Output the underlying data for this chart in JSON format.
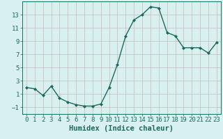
{
  "x": [
    0,
    1,
    2,
    3,
    4,
    5,
    6,
    7,
    8,
    9,
    10,
    11,
    12,
    13,
    14,
    15,
    16,
    17,
    18,
    19,
    20,
    21,
    22,
    23
  ],
  "y": [
    2.0,
    1.8,
    0.8,
    2.2,
    0.4,
    -0.2,
    -0.6,
    -0.8,
    -0.8,
    -0.5,
    2.0,
    5.5,
    9.8,
    12.2,
    13.0,
    14.2,
    14.0,
    10.3,
    9.8,
    8.0,
    8.0,
    8.0,
    7.2,
    8.8
  ],
  "line_color": "#1a6b5a",
  "marker": "D",
  "marker_size": 2.0,
  "bg_color": "#d8f0f0",
  "grid_color": "#c8b8b8",
  "xlabel": "Humidex (Indice chaleur)",
  "xlim": [
    -0.5,
    23.5
  ],
  "ylim": [
    -2.0,
    15.0
  ],
  "yticks": [
    -1,
    1,
    3,
    5,
    7,
    9,
    11,
    13
  ],
  "xticks": [
    0,
    1,
    2,
    3,
    4,
    5,
    6,
    7,
    8,
    9,
    10,
    11,
    12,
    13,
    14,
    15,
    16,
    17,
    18,
    19,
    20,
    21,
    22,
    23
  ],
  "xlabel_fontsize": 7.5,
  "tick_fontsize": 6.5,
  "linewidth": 1.0
}
